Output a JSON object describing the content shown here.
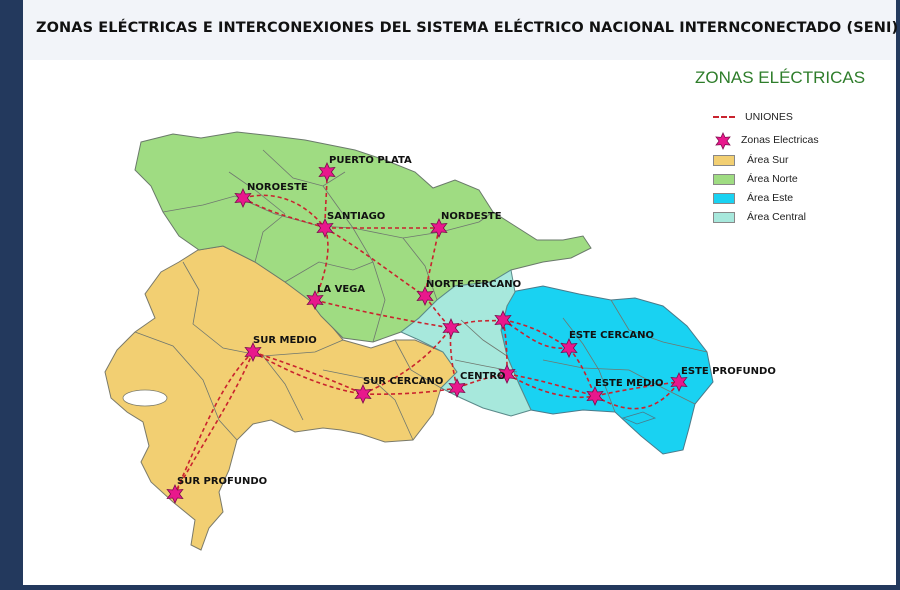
{
  "header": {
    "title": "ZONAS ELÉCTRICAS E INTERCONEXIONES DEL SISTEMA ELÉCTRICO NACIONAL INTERNCONECTADO (SENI)"
  },
  "legend": {
    "title": "ZONAS ELÉCTRICAS",
    "uniones_label": "UNIONES",
    "zonas_label": "Zonas  Electricas",
    "areas": [
      {
        "label": "Área Sur",
        "color": "#f2cf72"
      },
      {
        "label": "Área Norte",
        "color": "#9fdc82"
      },
      {
        "label": "Área Este",
        "color": "#19d2f2"
      },
      {
        "label": "Área Central",
        "color": "#a7e8dc"
      }
    ],
    "union_color": "#c9232e",
    "star_color": "#e8188c"
  },
  "zones": [
    {
      "id": "puerto-plata",
      "label": "PUERTO PLATA"
    },
    {
      "id": "noroeste",
      "label": "NOROESTE"
    },
    {
      "id": "santiago",
      "label": "SANTIAGO"
    },
    {
      "id": "nordeste",
      "label": "NORDESTE"
    },
    {
      "id": "la-vega",
      "label": "LA VEGA"
    },
    {
      "id": "norte-cercano",
      "label": "NORTE CERCANO"
    },
    {
      "id": "sur-medio",
      "label": "SUR MEDIO"
    },
    {
      "id": "sur-cercano",
      "label": "SUR CERCANO"
    },
    {
      "id": "centro",
      "label": "CENTRO"
    },
    {
      "id": "este-cercano",
      "label": "ESTE CERCANO"
    },
    {
      "id": "este-medio",
      "label": "ESTE MEDIO"
    },
    {
      "id": "este-profundo",
      "label": "ESTE PROFUNDO"
    },
    {
      "id": "sur-profundo",
      "label": "SUR PROFUNDO"
    },
    {
      "id": "central-hub-1"
    },
    {
      "id": "central-hub-2"
    },
    {
      "id": "central-hub-3"
    }
  ]
}
